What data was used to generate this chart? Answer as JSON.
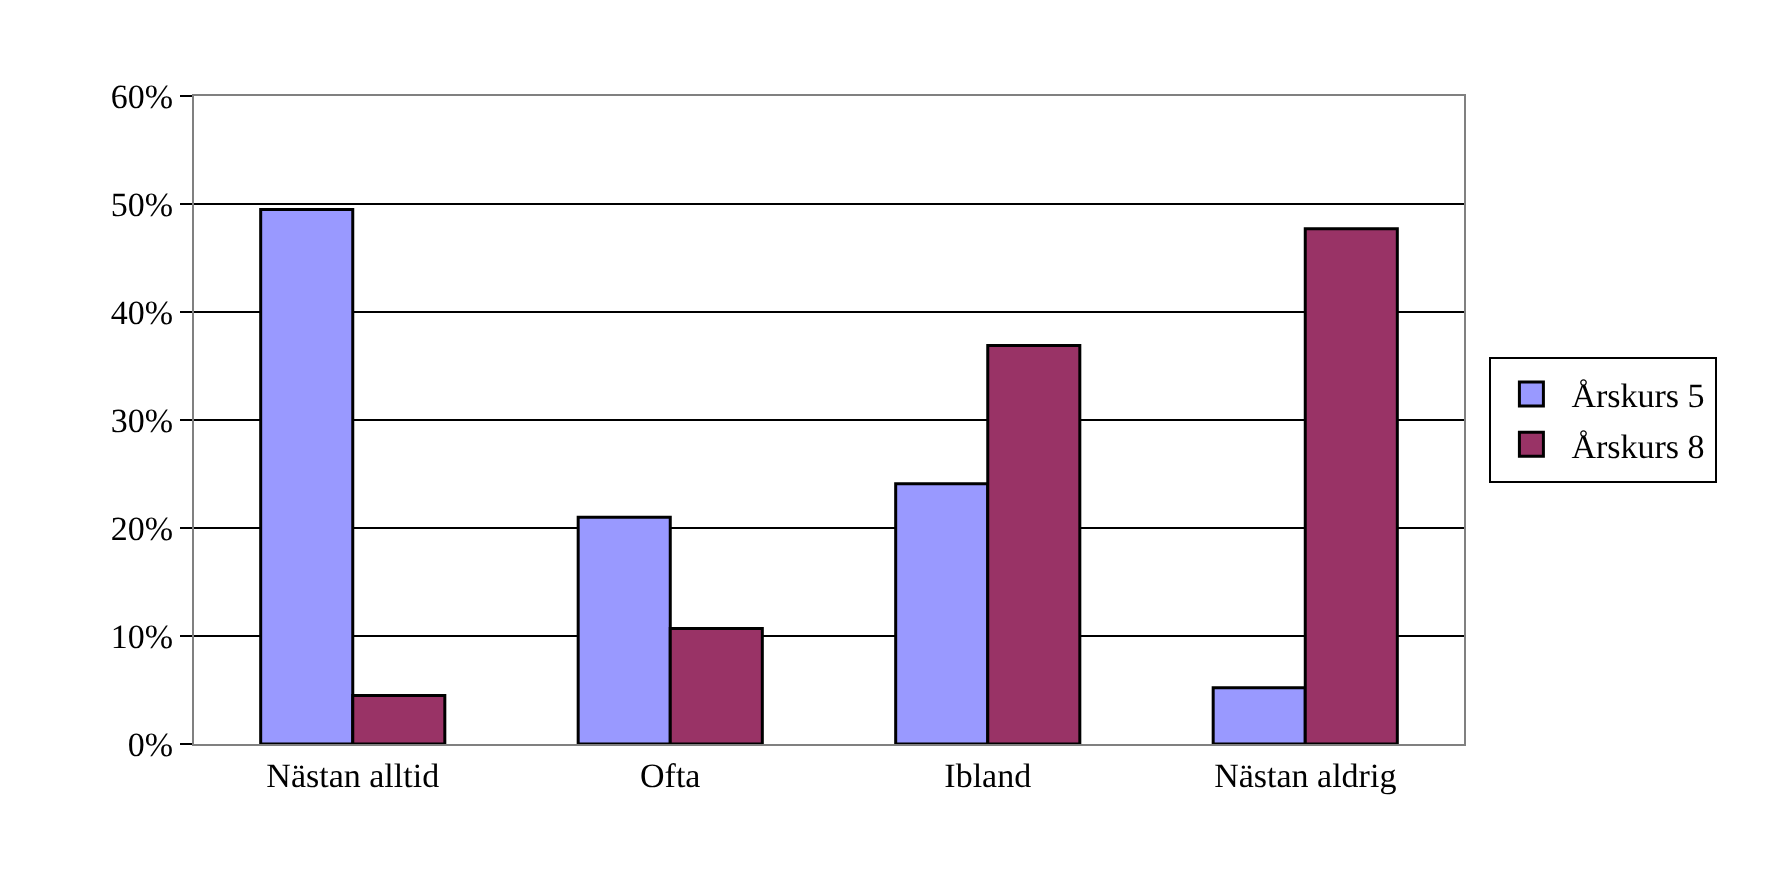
{
  "chart_data": {
    "type": "bar",
    "categories": [
      "Nästan alltid",
      "Ofta",
      "Ibland",
      "Nästan aldrig"
    ],
    "series": [
      {
        "name": "Årskurs 5",
        "color": "#9999ff",
        "values": [
          49.5,
          21,
          24.1,
          5.2
        ]
      },
      {
        "name": "Årskurs 8",
        "color": "#993366",
        "values": [
          4.5,
          10.7,
          36.9,
          47.7
        ]
      }
    ],
    "ylim": [
      0,
      60
    ],
    "yticks": [
      {
        "value": 0,
        "label": "0%"
      },
      {
        "value": 10,
        "label": "10%"
      },
      {
        "value": 20,
        "label": "20%"
      },
      {
        "value": 30,
        "label": "30%"
      },
      {
        "value": 40,
        "label": "40%"
      },
      {
        "value": 50,
        "label": "50%"
      },
      {
        "value": 60,
        "label": "60%"
      }
    ],
    "grid": "y",
    "legend": "right"
  }
}
